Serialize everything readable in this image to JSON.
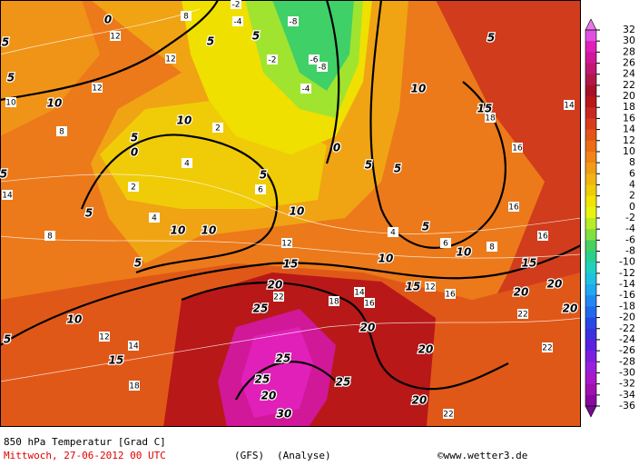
{
  "title": "850 hPa Temperatur [Grad C]",
  "date": "Mittwoch, 27-06-2012  00 UTC",
  "model": "(GFS)",
  "run": "(Analyse)",
  "credit": "©www.wetter3.de",
  "colorbar": {
    "labels": [
      32,
      30,
      28,
      26,
      24,
      22,
      20,
      18,
      16,
      14,
      12,
      10,
      8,
      6,
      4,
      2,
      0,
      -2,
      -4,
      -6,
      -8,
      -10,
      -12,
      -14,
      -16,
      -18,
      -20,
      -22,
      -24,
      -26,
      -28,
      -30,
      -32,
      -34,
      -36
    ],
    "colors": [
      "#e050e0",
      "#e020b8",
      "#d01898",
      "#c01870",
      "#b01848",
      "#a81028",
      "#b81818",
      "#c82820",
      "#d83c1c",
      "#e45418",
      "#ec6c18",
      "#f08418",
      "#f09c18",
      "#f0b414",
      "#f0cc08",
      "#f0e400",
      "#e8f410",
      "#b8ec28",
      "#80e040",
      "#48d060",
      "#28d090",
      "#20d0c0",
      "#20c0e0",
      "#20a8f0",
      "#2088f0",
      "#2068ec",
      "#2848e4",
      "#3c30e0",
      "#5c20e0",
      "#7c20e0",
      "#9820dc",
      "#a818c8",
      "#a010b0",
      "#8808a0"
    ],
    "top_color": "#e878e8",
    "bottom_color": "#780890"
  },
  "contour_labels": [
    "0",
    "5",
    "5",
    "5",
    "5",
    "10",
    "10",
    "10",
    "15",
    "5",
    "0",
    "0",
    "5",
    "5",
    "5",
    "5",
    "10",
    "10",
    "10",
    "5",
    "10",
    "10",
    "5",
    "15",
    "15",
    "15",
    "20",
    "20",
    "20",
    "20",
    "10",
    "25",
    "20",
    "5",
    "15",
    "20",
    "25",
    "25",
    "20",
    "25",
    "20",
    "30",
    "5",
    "5"
  ],
  "isotherm_labels": [
    "8",
    "12",
    "12",
    "10",
    "12",
    "8",
    "14",
    "-2",
    "-4",
    "-8",
    "-6",
    "-8",
    "-4",
    "-2",
    "2",
    "4",
    "2",
    "4",
    "6",
    "8",
    "4",
    "6",
    "8",
    "12",
    "14",
    "16",
    "18",
    "16",
    "14",
    "16",
    "12",
    "18",
    "22",
    "22",
    "22",
    "22",
    "16",
    "14",
    "18",
    "16",
    "12"
  ]
}
